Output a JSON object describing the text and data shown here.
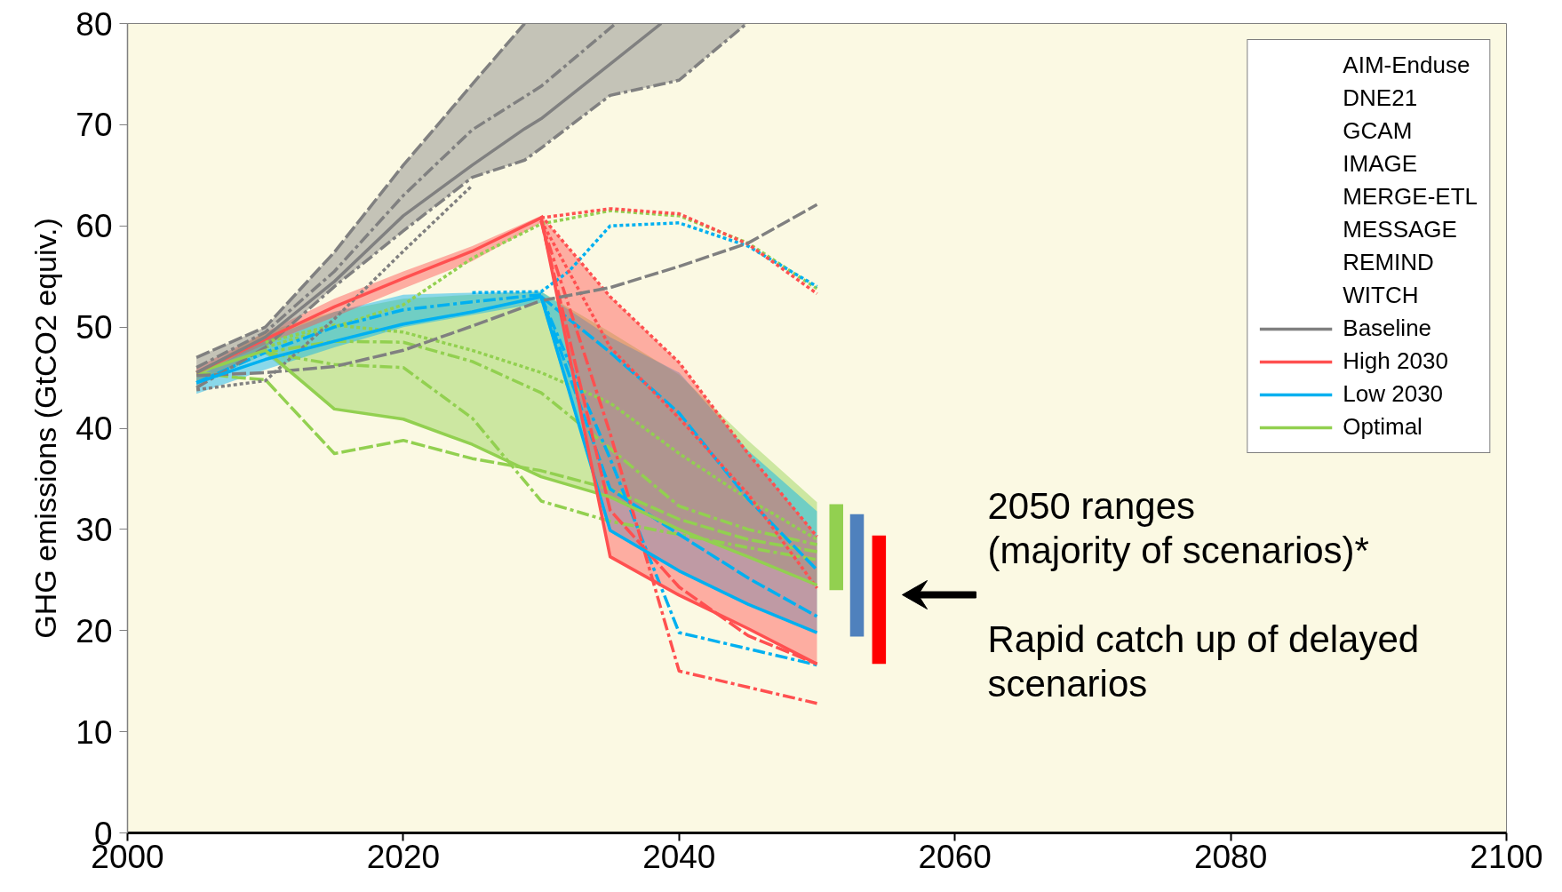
{
  "chart_data": {
    "type": "line",
    "ylabel": "GHG emissions (GtCO2 equiv.)",
    "xlim": [
      2000,
      2100
    ],
    "xticks": [
      2000,
      2020,
      2040,
      2060,
      2080,
      2100
    ],
    "ylim": [
      0,
      80
    ],
    "yticks": [
      0,
      10,
      20,
      30,
      40,
      50,
      60,
      70,
      80
    ],
    "grid": false,
    "legend": "top right",
    "series": [
      {
        "name": "AIM-Enduse"
      },
      {
        "name": "DNE21"
      },
      {
        "name": "GCAM"
      },
      {
        "name": "IMAGE"
      },
      {
        "name": "MERGE-ETL"
      },
      {
        "name": "MESSAGE"
      },
      {
        "name": "REMIND"
      },
      {
        "name": "WITCH"
      },
      {
        "name": "Baseline",
        "color": "#808080",
        "line_style": "solid",
        "x": [
          2005,
          2010,
          2015,
          2020,
          2025,
          2028.8,
          2030,
          2035,
          2038.7,
          2040,
          2044.9
        ],
        "values": [
          45.5,
          49,
          54.5,
          61,
          66,
          69.6,
          70.6,
          76,
          80,
          null,
          null
        ],
        "lower": [
          44,
          48,
          54,
          59.5,
          64.8,
          66.5,
          67.7,
          72.9,
          74,
          74.4,
          80
        ],
        "upper": [
          47,
          50,
          57.4,
          66,
          74,
          80,
          80,
          80,
          80,
          80,
          80
        ]
      },
      {
        "name": "High 2030",
        "color": "#ff5050",
        "line_style": "solid",
        "x": [
          2005,
          2010,
          2015,
          2020,
          2025,
          2030,
          2035,
          2040,
          2045,
          2050
        ],
        "values": [
          45.5,
          48.8,
          52,
          54.8,
          57.5,
          60.8,
          27.3,
          23.5,
          20.2,
          16.7
        ],
        "lower": [
          45.3,
          48.3,
          51,
          53.8,
          56.5,
          60.3,
          27.3,
          23.5,
          20.2,
          16.7
        ],
        "upper": [
          46,
          49.5,
          52.8,
          55.5,
          58,
          61,
          53,
          46.5,
          37.5,
          29.3
        ]
      },
      {
        "name": "Low 2030",
        "color": "#00b0f0",
        "line_style": "solid",
        "x": [
          2005,
          2010,
          2015,
          2020,
          2025,
          2030,
          2035,
          2040,
          2045,
          2050
        ],
        "values": [
          44.5,
          46.8,
          48.6,
          50.3,
          51.5,
          53,
          29.9,
          25.9,
          22.6,
          19.8
        ],
        "lower": [
          43.4,
          45.8,
          48,
          50,
          51.2,
          52.4,
          29.9,
          25.9,
          22.6,
          19.8
        ],
        "upper": [
          45,
          48.8,
          51.5,
          53.2,
          53.4,
          53.5,
          49,
          45.5,
          37.8,
          31.8
        ]
      },
      {
        "name": "Optimal",
        "color": "#92d050",
        "line_style": "solid",
        "x": [
          2005,
          2010,
          2015,
          2020,
          2025,
          2030,
          2035,
          2040,
          2045,
          2050
        ],
        "values": [
          45.5,
          47.7,
          41.9,
          40.9,
          38.4,
          35.2,
          33.2,
          30,
          27.3,
          24.5
        ],
        "lower": [
          44.3,
          47.3,
          41.9,
          40.9,
          38.4,
          35.2,
          33.2,
          30,
          27.3,
          24.5
        ],
        "upper": [
          45.5,
          49.5,
          51.5,
          52.8,
          53.2,
          53.5,
          49.5,
          45.3,
          38.8,
          32.7
        ]
      },
      {
        "color": "#808080",
        "line_style": "dashed",
        "x": [
          2005,
          2010,
          2015,
          2020,
          2025,
          2028.8
        ],
        "values": [
          47,
          50,
          57.4,
          66,
          74,
          80
        ]
      },
      {
        "color": "#808080",
        "line_style": "dashdot",
        "x": [
          2005,
          2010,
          2015,
          2020,
          2025,
          2028.8,
          2030,
          2035,
          2038.7,
          2040,
          2044.9
        ],
        "values": [
          44,
          48,
          54,
          59.5,
          64.8,
          66.5,
          67.7,
          72.9,
          74,
          74.4,
          80
        ]
      },
      {
        "color": "#808080",
        "line_style": "dashed",
        "x": [
          2005,
          2010,
          2015,
          2020,
          2025,
          2030,
          2035,
          2040,
          2045,
          2050
        ],
        "values": [
          45.2,
          45.5,
          46.1,
          47.7,
          50.1,
          52.6,
          53.9,
          56,
          58.3,
          62.1
        ]
      },
      {
        "color": "#808080",
        "line_style": "dotted",
        "x": [
          2005,
          2010,
          2015,
          2020,
          2025
        ],
        "values": [
          43.8,
          44.7,
          50.8,
          57.5,
          64
        ]
      },
      {
        "color": "#808080",
        "line_style": "dashdot",
        "x": [
          2005,
          2010,
          2015,
          2020,
          2025,
          2030,
          2035.4
        ],
        "values": [
          46,
          49.5,
          55.5,
          63,
          69.5,
          73.8,
          80
        ]
      },
      {
        "color": "#ff5050",
        "line_style": "dotted",
        "x": [
          2030,
          2035,
          2040,
          2045,
          2050
        ],
        "values": [
          60.8,
          61.7,
          61.2,
          58.2,
          53.3
        ]
      },
      {
        "color": "#ff5050",
        "line_style": "dashdot",
        "x": [
          2030,
          2035,
          2040,
          2045,
          2050
        ],
        "values": [
          60.5,
          39.5,
          16,
          14.4,
          12.8
        ]
      },
      {
        "color": "#ff5050",
        "line_style": "dashed",
        "x": [
          2030,
          2035,
          2040,
          2045,
          2050
        ],
        "values": [
          60.5,
          31.9,
          24.3,
          19.5,
          16.7
        ]
      },
      {
        "color": "#ff5050",
        "line_style": "dotted",
        "x": [
          2030,
          2035,
          2040,
          2045,
          2050
        ],
        "values": [
          60.5,
          48,
          41,
          33.5,
          24.2
        ]
      },
      {
        "color": "#ff5050",
        "line_style": "dotted",
        "x": [
          2030,
          2035,
          2040,
          2045,
          2050
        ],
        "values": [
          61,
          53,
          46.5,
          37.5,
          29.3
        ]
      },
      {
        "color": "#00b0f0",
        "line_style": "dotted",
        "x": [
          2025,
          2030,
          2032,
          2035,
          2040,
          2045,
          2050
        ],
        "values": [
          53.4,
          53.5,
          55.5,
          60,
          60.3,
          58,
          54
        ]
      },
      {
        "color": "#00b0f0",
        "line_style": "dashdot",
        "x": [
          2030,
          2035,
          2040,
          2045,
          2050
        ],
        "values": [
          53,
          37,
          19.8,
          18.2,
          16.6
        ]
      },
      {
        "color": "#00b0f0",
        "line_style": "dashed",
        "x": [
          2030,
          2035,
          2040,
          2045,
          2050
        ],
        "values": [
          53,
          34,
          29.5,
          25.2,
          21.4
        ]
      },
      {
        "color": "#00b0f0",
        "line_style": "dashed",
        "x": [
          2030,
          2035,
          2040,
          2045,
          2050
        ],
        "values": [
          53,
          47.5,
          41.5,
          33,
          26
        ]
      },
      {
        "color": "#00b0f0",
        "line_style": "dashdot",
        "x": [
          2005,
          2010,
          2015,
          2020,
          2025,
          2030
        ],
        "values": [
          44.5,
          47.5,
          50,
          51.7,
          52.5,
          53.2
        ]
      },
      {
        "color": "#92d050",
        "line_style": "dashed",
        "x": [
          2005,
          2008,
          2010,
          2015,
          2020,
          2025,
          2030,
          2035,
          2040,
          2045,
          2050
        ],
        "values": [
          45.5,
          45,
          44.8,
          37.5,
          38.8,
          37,
          35.8,
          34,
          31,
          29,
          27.8
        ]
      },
      {
        "color": "#92d050",
        "line_style": "dashdot",
        "x": [
          2010,
          2015,
          2020,
          2025,
          2030,
          2035,
          2040,
          2045,
          2050
        ],
        "values": [
          47.5,
          46.3,
          46,
          41,
          32.8,
          30.8,
          29.5,
          28.2,
          27
        ]
      },
      {
        "color": "#92d050",
        "line_style": "dashdot",
        "x": [
          2010,
          2015,
          2020,
          2025,
          2030,
          2035,
          2040,
          2045,
          2050
        ],
        "values": [
          47.5,
          48.6,
          48.5,
          46.6,
          43.5,
          38,
          32.3,
          30,
          28.5
        ]
      },
      {
        "color": "#92d050",
        "line_style": "dotted",
        "x": [
          2010,
          2015,
          2020,
          2025,
          2030,
          2035,
          2040,
          2045,
          2050
        ],
        "values": [
          48,
          50,
          52.2,
          56.8,
          60.2,
          61.5,
          61,
          58.3,
          53.8
        ]
      },
      {
        "color": "#92d050",
        "line_style": "dotted",
        "x": [
          2010,
          2015,
          2020,
          2025,
          2030,
          2035,
          2040,
          2045,
          2050
        ],
        "values": [
          48.5,
          50.2,
          49.5,
          47.7,
          45.5,
          42.5,
          37.5,
          33,
          29
        ]
      },
      {
        "type": "bar",
        "x": [
          2051.4,
          2052.9,
          2054.5
        ],
        "base": [
          24,
          19.4,
          16.7
        ],
        "values": [
          8.5,
          12.1,
          12.7
        ],
        "colors": [
          "#92d050",
          "#4f81bd",
          "#ff0000"
        ]
      }
    ],
    "annotations": [
      "2050 ranges\n(majority of scenarios)*",
      "Rapid catch up of delayed\nscenarios"
    ]
  }
}
